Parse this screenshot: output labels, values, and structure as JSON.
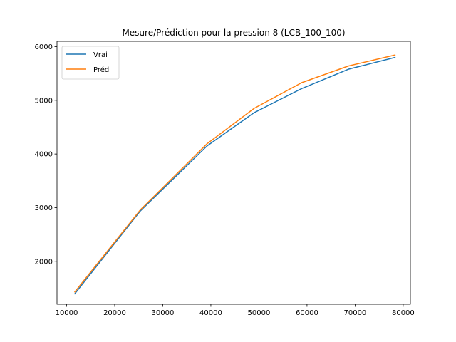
{
  "chart_data": {
    "type": "line",
    "title": "Mesure/Prédiction pour la pression 8 (LCB_100_100)",
    "xlabel": "",
    "ylabel": "",
    "xlim": [
      8000,
      81500
    ],
    "ylim": [
      1200,
      6100
    ],
    "x_ticks": [
      10000,
      20000,
      30000,
      40000,
      50000,
      60000,
      70000,
      80000
    ],
    "y_ticks": [
      2000,
      3000,
      4000,
      5000,
      6000
    ],
    "grid": false,
    "legend_position": "top-left",
    "series": [
      {
        "name": "Vrai",
        "color": "#1f77b4",
        "x": [
          11700,
          25300,
          39200,
          49000,
          58900,
          68600,
          78300
        ],
        "y": [
          1395,
          2935,
          4150,
          4770,
          5220,
          5580,
          5800
        ]
      },
      {
        "name": "Préd",
        "color": "#ff7f0e",
        "x": [
          11700,
          25300,
          39200,
          49000,
          58900,
          68600,
          78300
        ],
        "y": [
          1430,
          2955,
          4190,
          4850,
          5330,
          5640,
          5845
        ]
      }
    ]
  }
}
